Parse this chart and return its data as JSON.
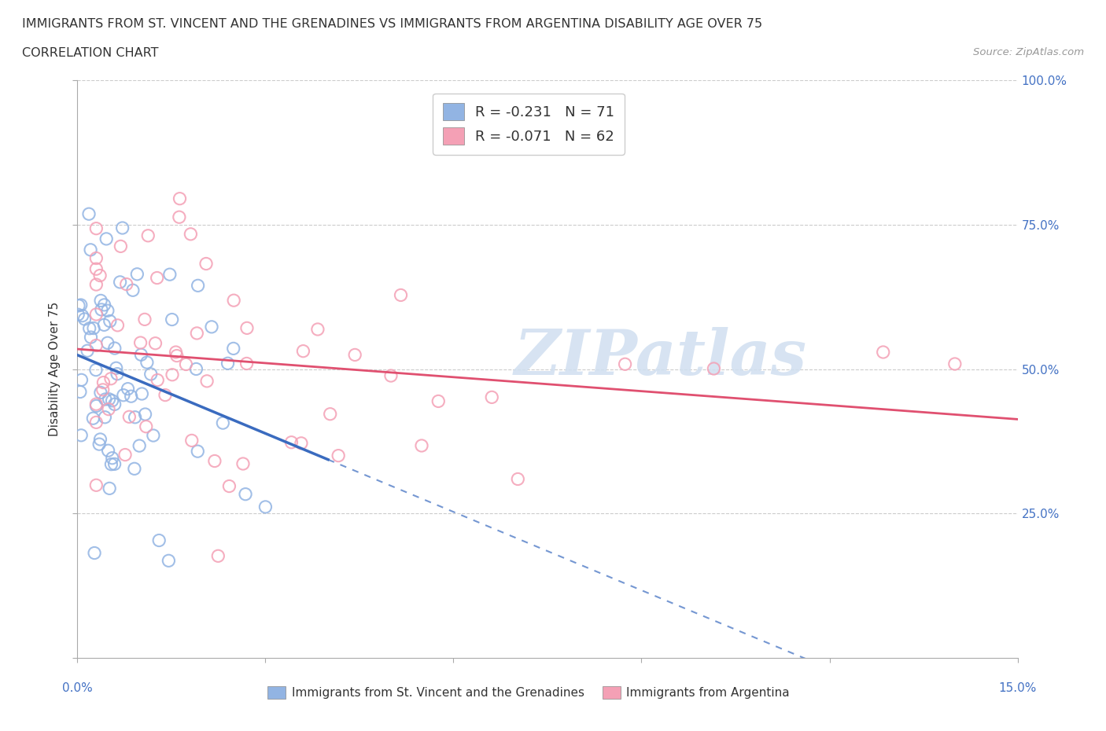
{
  "title": "IMMIGRANTS FROM ST. VINCENT AND THE GRENADINES VS IMMIGRANTS FROM ARGENTINA DISABILITY AGE OVER 75",
  "subtitle": "CORRELATION CHART",
  "source": "Source: ZipAtlas.com",
  "ylabel": "Disability Age Over 75",
  "xlim": [
    0.0,
    0.15
  ],
  "ylim": [
    0.0,
    1.0
  ],
  "legend1_label": "R = -0.231   N = 71",
  "legend2_label": "R = -0.071   N = 62",
  "series1_color": "#92b4e3",
  "series2_color": "#f4a0b5",
  "trend1_color": "#3a6bbf",
  "trend2_color": "#e05070",
  "watermark_text": "ZIPatlas",
  "watermark_color": "#d0dff0",
  "R1": -0.231,
  "N1": 71,
  "R2": -0.071,
  "N2": 62,
  "grid_color": "#cccccc",
  "background_color": "#ffffff",
  "title_color": "#333333",
  "axis_label_color": "#4472c4",
  "right_tick_color": "#4472c4"
}
